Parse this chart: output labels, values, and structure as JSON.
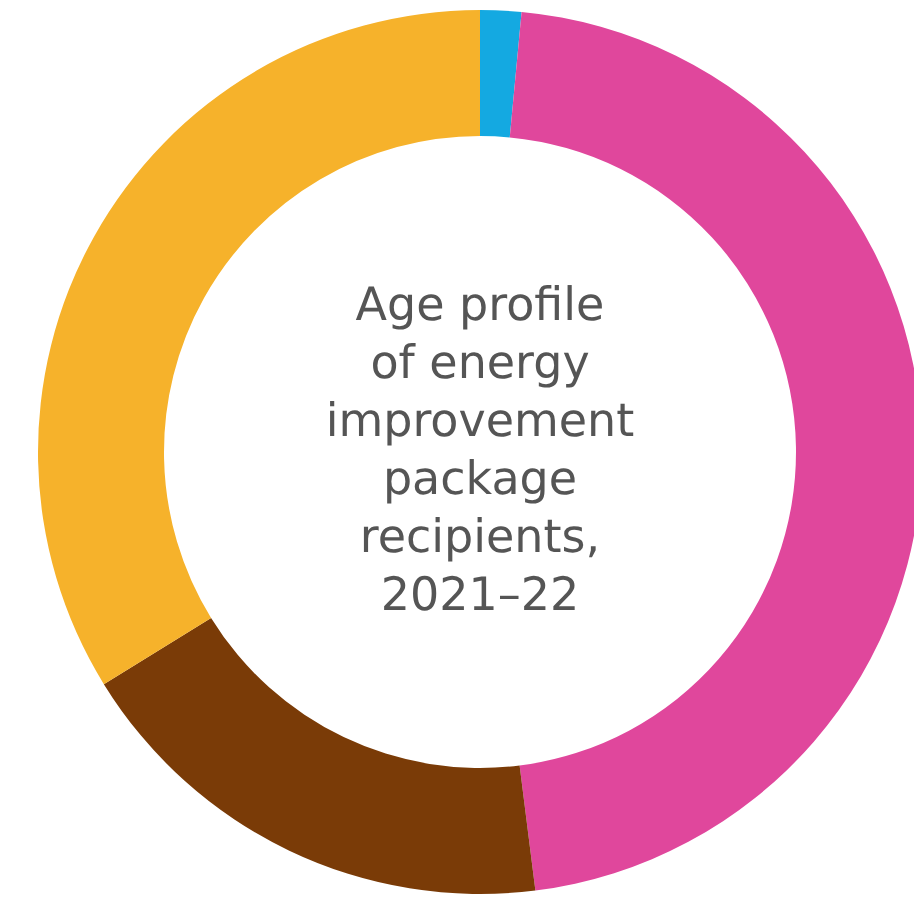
{
  "chart_data": {
    "type": "donut",
    "title": "Age profile of energy improvement package recipients, 2021–22",
    "categories": [
      null,
      null,
      null,
      null
    ],
    "values": [
      1.5,
      46.5,
      18.2,
      33.8
    ],
    "colors": [
      "#14a9e1",
      "#e0479c",
      "#7a3b07",
      "#f6b22b"
    ],
    "legend": false
  }
}
